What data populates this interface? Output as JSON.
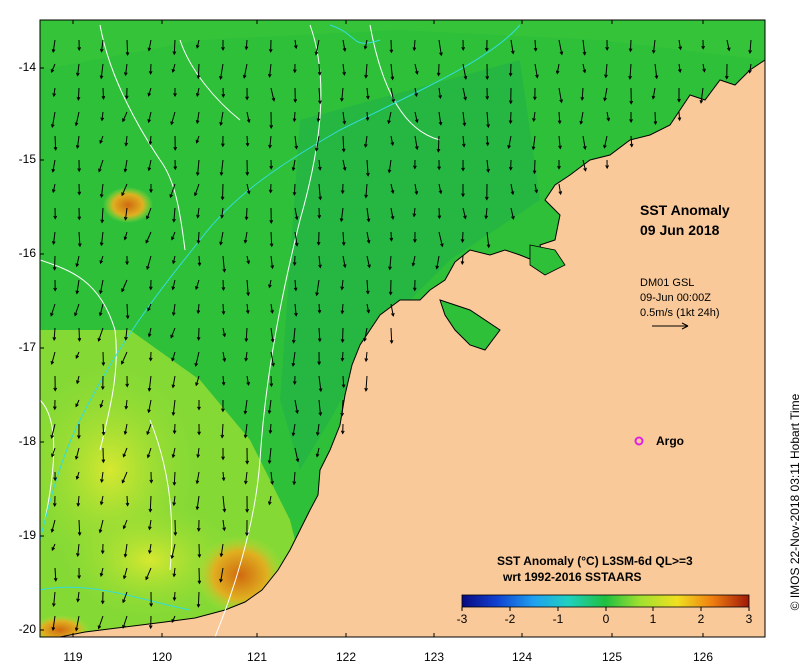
{
  "map": {
    "title_line1": "SST Anomaly",
    "title_line2": "09 Jun 2018",
    "current_source": "DM01 GSL",
    "current_time": "09-Jun 00:00Z",
    "current_scale": "0.5m/s (1kt 24h)",
    "argo_label": "Argo",
    "legend_title_line1": "SST Anomaly (°C) L3SM-6d QL>=3",
    "legend_title_line2": "wrt 1992-2016 SSTAARS",
    "colorbar_ticks": [
      "-3",
      "-2",
      "-1",
      "0",
      "1",
      "2",
      "3"
    ],
    "credit": "© IMOS 22-Nov-2018 03:11 Hobart Time",
    "y_ticks": [
      "-14",
      "-15",
      "-16",
      "-17",
      "-18",
      "-19",
      "-20"
    ],
    "x_ticks": [
      "119",
      "120",
      "121",
      "122",
      "123",
      "124",
      "125",
      "126"
    ],
    "lon_range": [
      118.7,
      126.7
    ],
    "lat_range": [
      -20.1,
      -13.5
    ],
    "colors": {
      "land": "#f9c99a",
      "ocean_main": "#2fc03a",
      "ocean_warm": "#9fe23a",
      "ocean_hot": "#e0a020",
      "contour_white": "#ffffff",
      "contour_cyan": "#33dddd",
      "argo": "#e020e0"
    }
  }
}
